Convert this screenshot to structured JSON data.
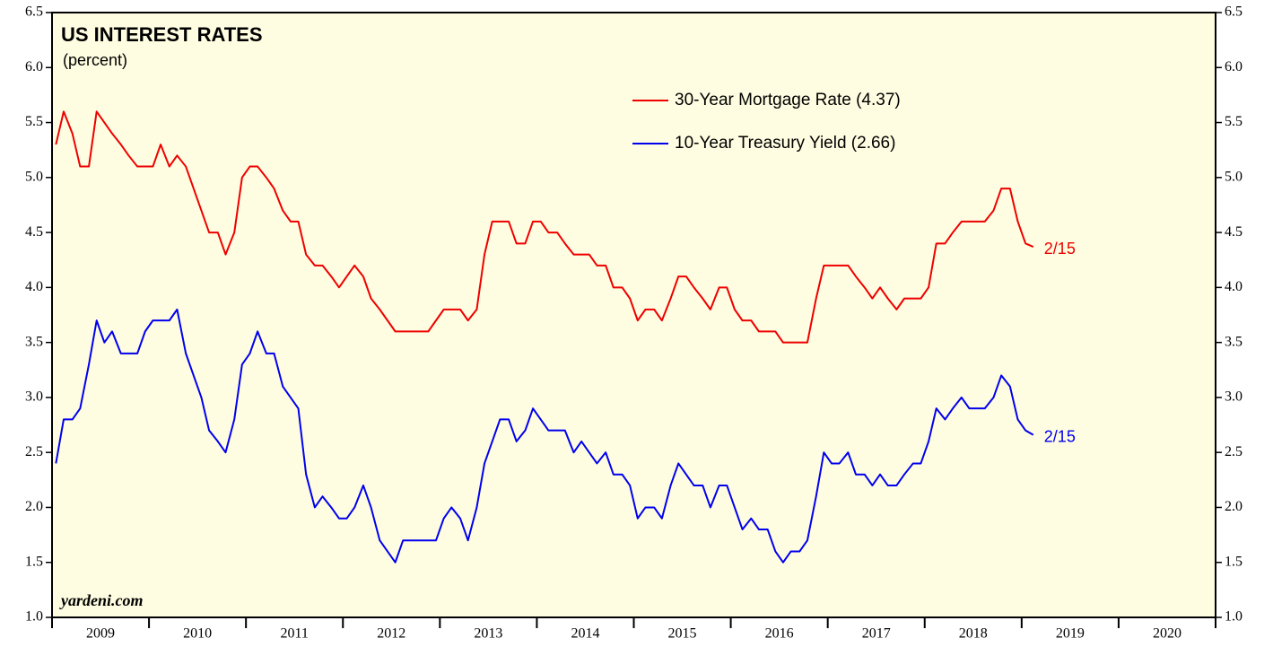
{
  "chart_data": {
    "type": "line",
    "title": "US INTEREST RATES",
    "subtitle": "(percent)",
    "source": "yardeni.com",
    "x": [
      2009.04,
      2009.12,
      2009.21,
      2009.29,
      2009.38,
      2009.46,
      2009.54,
      2009.62,
      2009.71,
      2009.79,
      2009.88,
      2009.96,
      2010.04,
      2010.12,
      2010.21,
      2010.29,
      2010.38,
      2010.46,
      2010.54,
      2010.62,
      2010.71,
      2010.79,
      2010.88,
      2010.96,
      2011.04,
      2011.12,
      2011.21,
      2011.29,
      2011.38,
      2011.46,
      2011.54,
      2011.62,
      2011.71,
      2011.79,
      2011.88,
      2011.96,
      2012.04,
      2012.12,
      2012.21,
      2012.29,
      2012.38,
      2012.46,
      2012.54,
      2012.62,
      2012.71,
      2012.79,
      2012.88,
      2012.96,
      2013.04,
      2013.12,
      2013.21,
      2013.29,
      2013.38,
      2013.46,
      2013.54,
      2013.62,
      2013.71,
      2013.79,
      2013.88,
      2013.96,
      2014.04,
      2014.12,
      2014.21,
      2014.29,
      2014.38,
      2014.46,
      2014.54,
      2014.62,
      2014.71,
      2014.79,
      2014.88,
      2014.96,
      2015.04,
      2015.12,
      2015.21,
      2015.29,
      2015.38,
      2015.46,
      2015.54,
      2015.62,
      2015.71,
      2015.79,
      2015.88,
      2015.96,
      2016.04,
      2016.12,
      2016.21,
      2016.29,
      2016.38,
      2016.46,
      2016.54,
      2016.62,
      2016.71,
      2016.79,
      2016.88,
      2016.96,
      2017.04,
      2017.12,
      2017.21,
      2017.29,
      2017.38,
      2017.46,
      2017.54,
      2017.62,
      2017.71,
      2017.79,
      2017.88,
      2017.96,
      2018.04,
      2018.12,
      2018.21,
      2018.29,
      2018.38,
      2018.46,
      2018.54,
      2018.62,
      2018.71,
      2018.79,
      2018.88,
      2018.96,
      2019.04,
      2019.12
    ],
    "series": [
      {
        "name": "30-Year Mortgage Rate (4.37)",
        "color": "#ee0000",
        "values": [
          5.3,
          5.6,
          5.4,
          5.1,
          5.1,
          5.6,
          5.5,
          5.4,
          5.3,
          5.2,
          5.1,
          5.1,
          5.1,
          5.3,
          5.1,
          5.2,
          5.1,
          4.9,
          4.7,
          4.5,
          4.5,
          4.3,
          4.5,
          5.0,
          5.1,
          5.1,
          5.0,
          4.9,
          4.7,
          4.6,
          4.6,
          4.3,
          4.2,
          4.2,
          4.1,
          4.0,
          4.1,
          4.2,
          4.1,
          3.9,
          3.8,
          3.7,
          3.6,
          3.6,
          3.6,
          3.6,
          3.6,
          3.7,
          3.8,
          3.8,
          3.8,
          3.7,
          3.8,
          4.3,
          4.6,
          4.6,
          4.6,
          4.4,
          4.4,
          4.6,
          4.6,
          4.5,
          4.5,
          4.4,
          4.3,
          4.3,
          4.3,
          4.2,
          4.2,
          4.0,
          4.0,
          3.9,
          3.7,
          3.8,
          3.8,
          3.7,
          3.9,
          4.1,
          4.1,
          4.0,
          3.9,
          3.8,
          4.0,
          4.0,
          3.8,
          3.7,
          3.7,
          3.6,
          3.6,
          3.6,
          3.5,
          3.5,
          3.5,
          3.5,
          3.9,
          4.2,
          4.2,
          4.2,
          4.2,
          4.1,
          4.0,
          3.9,
          4.0,
          3.9,
          3.8,
          3.9,
          3.9,
          3.9,
          4.0,
          4.4,
          4.4,
          4.5,
          4.6,
          4.6,
          4.6,
          4.6,
          4.7,
          4.9,
          4.9,
          4.6,
          4.4,
          4.37
        ]
      },
      {
        "name": "10-Year Treasury Yield (2.66)",
        "color": "#0000ee",
        "values": [
          2.4,
          2.8,
          2.8,
          2.9,
          3.3,
          3.7,
          3.5,
          3.6,
          3.4,
          3.4,
          3.4,
          3.6,
          3.7,
          3.7,
          3.7,
          3.8,
          3.4,
          3.2,
          3.0,
          2.7,
          2.6,
          2.5,
          2.8,
          3.3,
          3.4,
          3.6,
          3.4,
          3.4,
          3.1,
          3.0,
          2.9,
          2.3,
          2.0,
          2.1,
          2.0,
          1.9,
          1.9,
          2.0,
          2.2,
          2.0,
          1.7,
          1.6,
          1.5,
          1.7,
          1.7,
          1.7,
          1.7,
          1.7,
          1.9,
          2.0,
          1.9,
          1.7,
          2.0,
          2.4,
          2.6,
          2.8,
          2.8,
          2.6,
          2.7,
          2.9,
          2.8,
          2.7,
          2.7,
          2.7,
          2.5,
          2.6,
          2.5,
          2.4,
          2.5,
          2.3,
          2.3,
          2.2,
          1.9,
          2.0,
          2.0,
          1.9,
          2.2,
          2.4,
          2.3,
          2.2,
          2.2,
          2.0,
          2.2,
          2.2,
          2.0,
          1.8,
          1.9,
          1.8,
          1.8,
          1.6,
          1.5,
          1.6,
          1.6,
          1.7,
          2.1,
          2.5,
          2.4,
          2.4,
          2.5,
          2.3,
          2.3,
          2.2,
          2.3,
          2.2,
          2.2,
          2.3,
          2.4,
          2.4,
          2.6,
          2.9,
          2.8,
          2.9,
          3.0,
          2.9,
          2.9,
          2.9,
          3.0,
          3.2,
          3.1,
          2.8,
          2.7,
          2.66
        ]
      }
    ],
    "annotations": [
      {
        "text": "2/15",
        "color": "#ee0000"
      },
      {
        "text": "2/15",
        "color": "#0000ee"
      }
    ],
    "xlim": [
      2009,
      2021
    ],
    "xticks": [
      2009,
      2010,
      2011,
      2012,
      2013,
      2014,
      2015,
      2016,
      2017,
      2018,
      2019,
      2020,
      2021
    ],
    "xlabels": [
      2009,
      2010,
      2011,
      2012,
      2013,
      2014,
      2015,
      2016,
      2017,
      2018,
      2019,
      2020
    ],
    "ylim": [
      1,
      6.5
    ],
    "yticks": [
      {
        "value": 1,
        "label": "1.0"
      },
      1.5,
      {
        "value": 2,
        "label": "2.0"
      },
      2.5,
      {
        "value": 3,
        "label": "3.0"
      },
      3.5,
      {
        "value": 4,
        "label": "4.0"
      },
      4.5,
      {
        "value": 5,
        "label": "5.0"
      },
      5.5,
      {
        "value": 6,
        "label": "6.0"
      },
      6.5
    ],
    "y2lim": [
      1,
      6.5
    ],
    "y2ticks": [
      {
        "value": 1,
        "label": "1.0"
      },
      1.5,
      {
        "value": 2,
        "label": "2.0"
      },
      2.5,
      {
        "value": 3,
        "label": "3.0"
      },
      3.5,
      {
        "value": 4,
        "label": "4.0"
      },
      4.5,
      {
        "value": 5,
        "label": "5.0"
      },
      5.5,
      {
        "value": 6,
        "label": "6.0"
      },
      6.5
    ],
    "background": "#fffde1"
  }
}
